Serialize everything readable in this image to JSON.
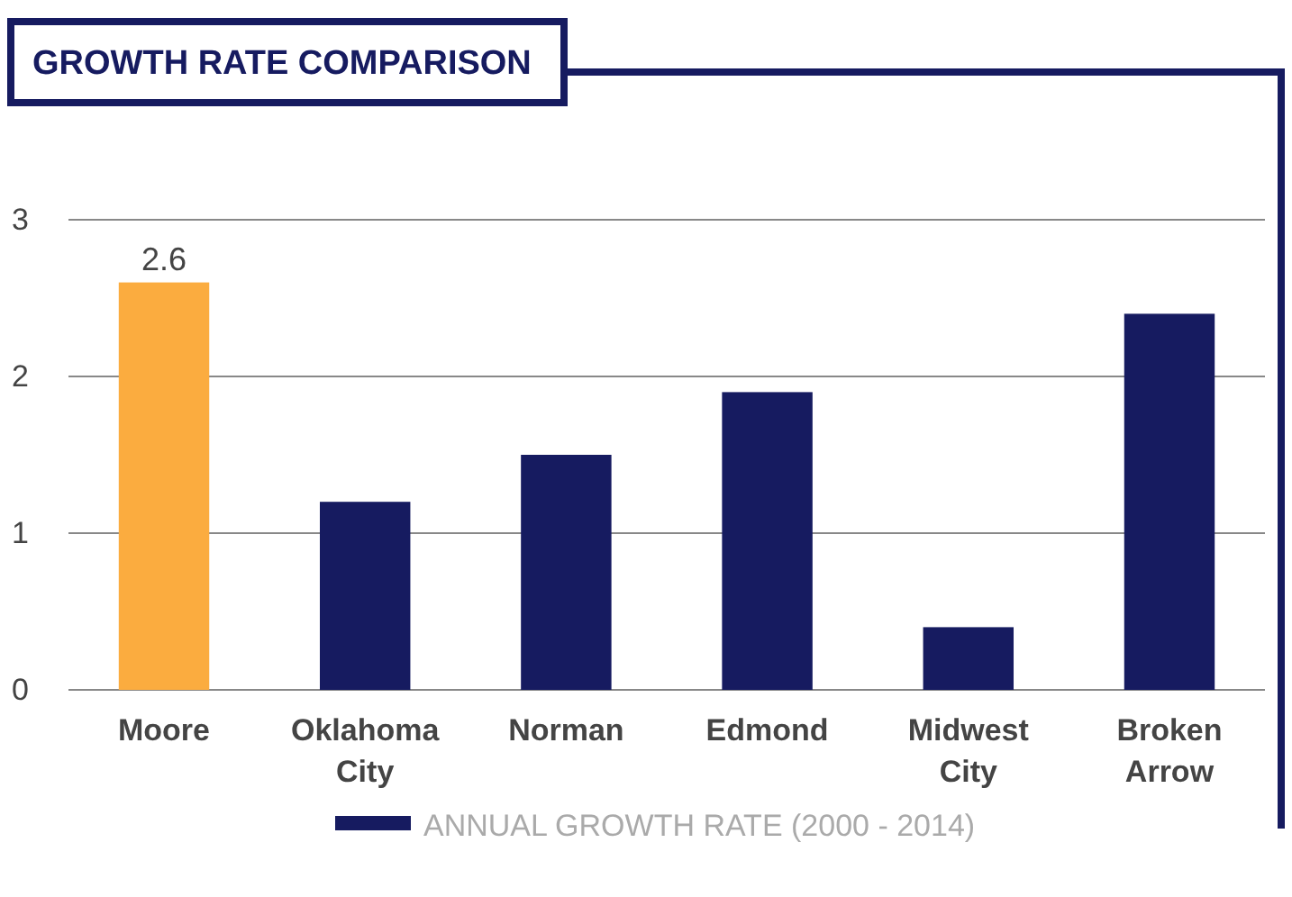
{
  "chart_data": {
    "type": "bar",
    "title": "GROWTH RATE COMPARISON",
    "categories": [
      "Moore",
      "Oklahoma\nCity",
      "Norman",
      "Edmond",
      "Midwest\nCity",
      "Broken\nArrow"
    ],
    "series": [
      {
        "name": "ANNUAL GROWTH RATE (2000 - 2014)",
        "color": "#161b60",
        "colors": [
          "#fbac3f",
          "#161b60",
          "#161b60",
          "#161b60",
          "#161b60",
          "#161b60"
        ],
        "values": [
          2.6,
          1.2,
          1.5,
          1.9,
          0.4,
          2.4
        ],
        "value_labels": [
          "2.6",
          null,
          null,
          null,
          null,
          null
        ]
      }
    ],
    "ylim": [
      0,
      3
    ],
    "yticks": [
      0,
      1,
      2,
      3
    ],
    "grid": "y",
    "legend": "bottom"
  }
}
